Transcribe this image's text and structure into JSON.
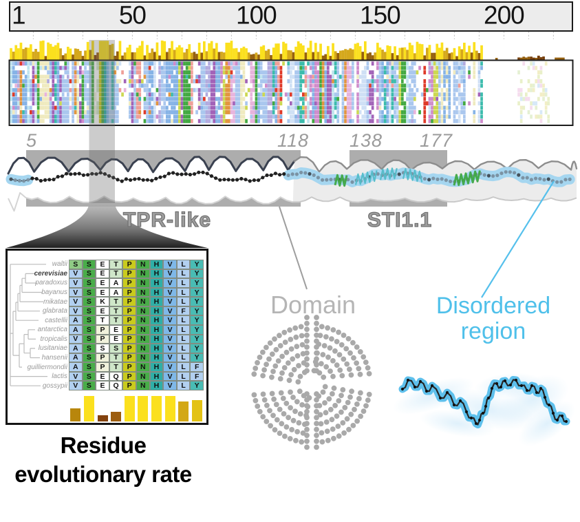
{
  "ruler": {
    "unit_labels": [
      "1",
      "50",
      "100",
      "150",
      "200"
    ],
    "positions": [
      1,
      50,
      100,
      150,
      200
    ],
    "tick_interval": 10,
    "sequence_length": 228
  },
  "overview": {
    "rows": 14,
    "dense_start": 1,
    "dense_end": 191,
    "detail_window_start": 33,
    "detail_window_end": 42,
    "sparse_start": 206,
    "sparse_end": 218,
    "seed": 7,
    "palette": [
      [
        "#aac7ee",
        22
      ],
      [
        "#86b3e6",
        9
      ],
      [
        "#cfe0f5",
        6
      ],
      [
        "#ffffff",
        12
      ],
      [
        "#43a942",
        7
      ],
      [
        "#df3a29",
        4
      ],
      [
        "#a263b8",
        5
      ],
      [
        "#cf8bcb",
        5
      ],
      [
        "#e7b3dc",
        4
      ],
      [
        "#3cbcac",
        5
      ],
      [
        "#e2953f",
        4
      ],
      [
        "#efeabf",
        6
      ],
      [
        "#ccd852",
        4
      ],
      [
        "#b2aade",
        4
      ],
      [
        "#ef9f98",
        4
      ],
      [
        "#bfe4ee",
        4
      ]
    ],
    "sparse_palette": [
      "#f2eec6",
      "#e9f0c9",
      "#f5dcee",
      "#d7e9f8",
      "#e5f0d3"
    ],
    "bar_palette": {
      "yellow": "#fbe01e",
      "gold": "#d5a81c",
      "brown": "#95600f",
      "darkbrown": "#77400c"
    }
  },
  "schematic": {
    "domains": [
      {
        "name": "TPR-like",
        "start": "5",
        "end": "118"
      },
      {
        "name": "STI1.1",
        "start": "138",
        "end": "177"
      }
    ],
    "region_color": "#adadad",
    "chain_color": "#212121",
    "disordered_chain_color": "#7b93a4",
    "disordered_highlight": "#a5d6f0",
    "helix_colors": [
      "#3fa844",
      "#52bcc8"
    ],
    "contour_dark": "#3a4150",
    "contour_gray": "#8d8d8d"
  },
  "callouts": {
    "domain": {
      "label": "Domain",
      "color": "#b5b5b5"
    },
    "disordered": {
      "line1": "Disordered",
      "line2": "region",
      "color": "#4fc0ea"
    }
  },
  "detail": {
    "species": [
      "waltii",
      "cerevisiae",
      "paradoxus",
      "bayanus",
      "mikatae",
      "glabrata",
      "castellii",
      "antarctica",
      "tropicalis",
      "lusitaniae",
      "hansenii",
      "guilliermondii",
      "lactis",
      "gossypii"
    ],
    "highlight_species": "cerevisiae",
    "alignment": [
      "SSETPNHVLY",
      "VSETPNHVLY",
      "VSEAPNHVLY",
      "VSEAPNHVLY",
      "VSKTPNHVLY",
      "VSETPNHVFY",
      "ASTTPNHVLY",
      "ASPEPNHVLY",
      "VSPEPNHVLY",
      "ASSSPNHVLY",
      "ASPTPNHVLY",
      "ASPTPNHVLF",
      "VSEQPNHVLF",
      "VSEQPNHVLY"
    ],
    "cell_colors": [
      "lg g wh pg ol g te bl lb te2",
      "lb g wh pg ol g te bl lb te2",
      "lb g wh wh ol g te bl lb te2",
      "lb g wh wh ol g te bl lb te2",
      "lb g wh pg ol g te bl lb te2",
      "lb g wh pg ol g te bl lb te2",
      "lb g wh pg ol g te bl lb te2",
      "lb g cr wh ol g te bl lb te2",
      "lb g cr wh ol g te bl lb te2",
      "lb g wh pg ol g te bl lb te2",
      "lb g cr pg ol g te bl lb te2",
      "lb g cr pg ol g te bl lb lb",
      "lb g wh wh ol g te bl lb lb",
      "lb g wh wh ol g te bl lb te2"
    ],
    "color_map": {
      "lg": "#8fca85",
      "g": "#49ad49",
      "wh": "#ffffff",
      "pg": "#cfe7c9",
      "cr": "#f1f2dc",
      "ol": "#c9cb1d",
      "te": "#2fafa7",
      "bl": "#7fb8e8",
      "lb": "#b2d0f0",
      "te2": "#49bcb4"
    },
    "rate_bars": {
      "heights": [
        19,
        37,
        9,
        14,
        37,
        37,
        37,
        37,
        29,
        31
      ],
      "colors": [
        "#b8860c",
        "#fbe01e",
        "#83420e",
        "#9c5d10",
        "#fbe01e",
        "#fbe01e",
        "#fbe01e",
        "#fbe01e",
        "#d3a816",
        "#e3c214"
      ]
    }
  },
  "caption": {
    "line1": "Residue",
    "line2": "evolutionary rate"
  }
}
